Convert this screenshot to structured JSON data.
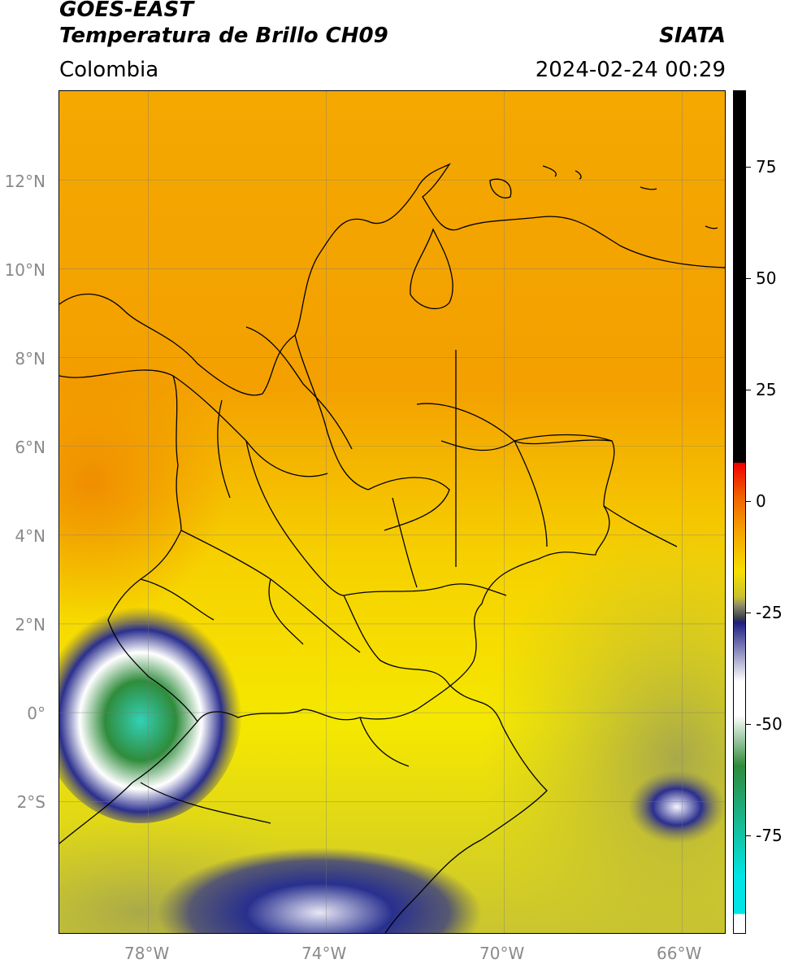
{
  "header": {
    "satellite": "GOES-EAST",
    "product": "Temperatura de Brillo CH09",
    "source": "SIATA",
    "region": "Colombia",
    "datetime": "2024-02-24 00:29"
  },
  "map": {
    "extent": {
      "lon_min": -80,
      "lon_max": -65,
      "lat_min": -5,
      "lat_max": 14
    },
    "lat_ticks": [
      {
        "value": 12,
        "label": "12°N"
      },
      {
        "value": 10,
        "label": "10°N"
      },
      {
        "value": 8,
        "label": "8°N"
      },
      {
        "value": 6,
        "label": "6°N"
      },
      {
        "value": 4,
        "label": "4°N"
      },
      {
        "value": 2,
        "label": "2°N"
      },
      {
        "value": 0,
        "label": "0°"
      },
      {
        "value": -2,
        "label": "2°S"
      }
    ],
    "lon_ticks": [
      {
        "value": -78,
        "label": "78°W"
      },
      {
        "value": -74,
        "label": "74°W"
      },
      {
        "value": -70,
        "label": "70°W"
      },
      {
        "value": -66,
        "label": "66°W"
      }
    ],
    "gridlines": true,
    "colors": {
      "warm": "#f4a000",
      "mid": "#f7e200",
      "cool": "#b9b33a",
      "cold": "#2a2f8c",
      "very_cold": "#2f8a3c",
      "coldest": "#2fd1b0",
      "border": "#000000"
    }
  },
  "colorbar": {
    "ticks": [
      {
        "value": 75,
        "label": "75"
      },
      {
        "value": 50,
        "label": "50"
      },
      {
        "value": 25,
        "label": "25"
      },
      {
        "value": 0,
        "label": "0"
      },
      {
        "value": -25,
        "label": "-25"
      },
      {
        "value": -50,
        "label": "-50"
      },
      {
        "value": -75,
        "label": "-75"
      }
    ],
    "range": [
      -100,
      90
    ]
  }
}
